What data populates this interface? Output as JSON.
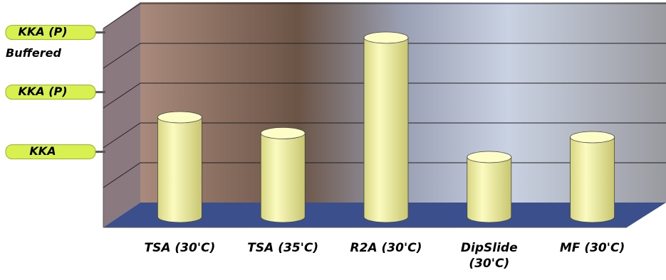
{
  "chart_data": {
    "type": "bar3d",
    "categories": [
      "TSA (30'C)",
      "TSA (35'C)",
      "R2A (30'C)",
      "DipSlide (30'C)",
      "MF (30'C)"
    ],
    "values": [
      2.5,
      2.1,
      4.5,
      1.5,
      2.0
    ],
    "color": "#f4f3a0",
    "ylim": [
      0,
      5
    ],
    "yticks": [
      {
        "value": 1.9,
        "label": [
          "KKA"
        ]
      },
      {
        "value": 3.4,
        "label": [
          "KKA (P)"
        ]
      },
      {
        "value": 4.9,
        "label": [
          "KKA (P)",
          "Buffered"
        ]
      }
    ],
    "grid": [
      1,
      2,
      3,
      4,
      5
    ]
  }
}
